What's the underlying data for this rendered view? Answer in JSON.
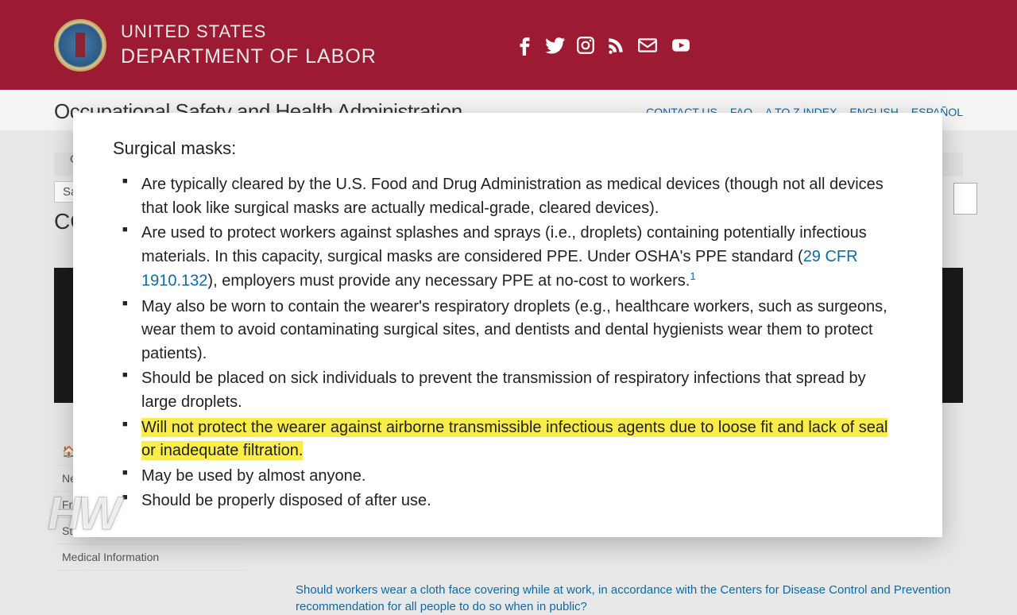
{
  "header": {
    "dept_line1": "UNITED STATES",
    "dept_line2": "DEPARTMENT OF LABOR",
    "bar_color": "#9d1b32"
  },
  "sub_header": {
    "agency_title": "Occupational Safety and Health Administration",
    "nav_links": [
      "CONTACT US",
      "FAQ",
      "A TO Z INDEX",
      "ENGLISH",
      "ESPAÑOL"
    ]
  },
  "background": {
    "tab_label": "Safe",
    "side_items": [
      "Ne",
      "Fr",
      "St Standards",
      "Medical Information"
    ],
    "covid_title": "CO",
    "bottom_link": "Should workers wear a cloth face covering while at work, in accordance with the Centers for Disease Control and Prevention recommendation for all people to do so when in public?"
  },
  "panel": {
    "heading": "Surgical masks:",
    "items": [
      {
        "pre": "Are typically cleared by the U.S. Food and Drug Administration as medical devices (though not all devices that look like surgical masks are actually medical-grade, cleared devices).",
        "link": "",
        "post": "",
        "highlight": false,
        "sup": ""
      },
      {
        "pre": "Are used to protect workers against splashes and sprays (i.e., droplets) containing potentially infectious materials. In this capacity, surgical masks are considered PPE. Under OSHA's PPE standard (",
        "link": "29 CFR 1910.132",
        "post": "), employers must provide any necessary PPE at no-cost to workers.",
        "highlight": false,
        "sup": "1"
      },
      {
        "pre": "May also be worn to contain the wearer's respiratory droplets (e.g., healthcare workers, such as surgeons, wear them to avoid contaminating surgical sites, and dentists and dental hygienists wear them to protect patients).",
        "link": "",
        "post": "",
        "highlight": false,
        "sup": ""
      },
      {
        "pre": "Should be placed on sick individuals to prevent the transmission of respiratory infections that spread by large droplets.",
        "link": "",
        "post": "",
        "highlight": false,
        "sup": ""
      },
      {
        "pre": "Will not protect the wearer against airborne transmissible infectious agents due to loose fit and lack of seal or inadequate filtration.",
        "link": "",
        "post": "",
        "highlight": true,
        "sup": ""
      },
      {
        "pre": "May be used by almost anyone.",
        "link": "",
        "post": "",
        "highlight": false,
        "sup": ""
      },
      {
        "pre": "Should be properly disposed of after use.",
        "link": "",
        "post": "",
        "highlight": false,
        "sup": ""
      }
    ]
  },
  "watermark": "HW",
  "colors": {
    "link": "#0d6aa8",
    "highlight": "#f9ed4a"
  }
}
